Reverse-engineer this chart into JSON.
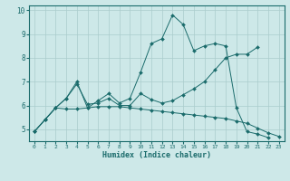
{
  "xlabel": "Humidex (Indice chaleur)",
  "bg_color": "#cde8e8",
  "line_color": "#1a6b6b",
  "grid_color": "#aacccc",
  "x": [
    0,
    1,
    2,
    3,
    4,
    5,
    6,
    7,
    8,
    9,
    10,
    11,
    12,
    13,
    14,
    15,
    16,
    17,
    18,
    19,
    20,
    21,
    22,
    23
  ],
  "line1": [
    4.9,
    5.4,
    5.9,
    6.3,
    7.0,
    5.9,
    6.2,
    6.5,
    6.1,
    6.3,
    7.4,
    8.6,
    8.8,
    9.8,
    9.4,
    8.3,
    8.5,
    8.6,
    8.5,
    5.9,
    4.9,
    4.8,
    4.65,
    null
  ],
  "line2": [
    4.9,
    5.4,
    5.9,
    5.85,
    5.85,
    5.9,
    5.95,
    5.95,
    5.95,
    5.9,
    5.85,
    5.8,
    5.75,
    5.7,
    5.65,
    5.6,
    5.55,
    5.5,
    5.45,
    5.35,
    5.25,
    5.05,
    4.85,
    4.7
  ],
  "line3": [
    4.9,
    5.4,
    5.9,
    6.3,
    6.9,
    6.05,
    6.1,
    6.3,
    6.0,
    6.0,
    6.5,
    6.25,
    6.1,
    6.2,
    6.45,
    6.7,
    7.0,
    7.5,
    8.0,
    8.15,
    8.15,
    8.45,
    null,
    null
  ],
  "ylim": [
    4.5,
    10.2
  ],
  "xlim": [
    -0.5,
    23.5
  ],
  "yticks": [
    5,
    6,
    7,
    8,
    9,
    10
  ],
  "xticks": [
    0,
    1,
    2,
    3,
    4,
    5,
    6,
    7,
    8,
    9,
    10,
    11,
    12,
    13,
    14,
    15,
    16,
    17,
    18,
    19,
    20,
    21,
    22,
    23
  ],
  "figsize": [
    3.2,
    2.0
  ],
  "dpi": 100
}
